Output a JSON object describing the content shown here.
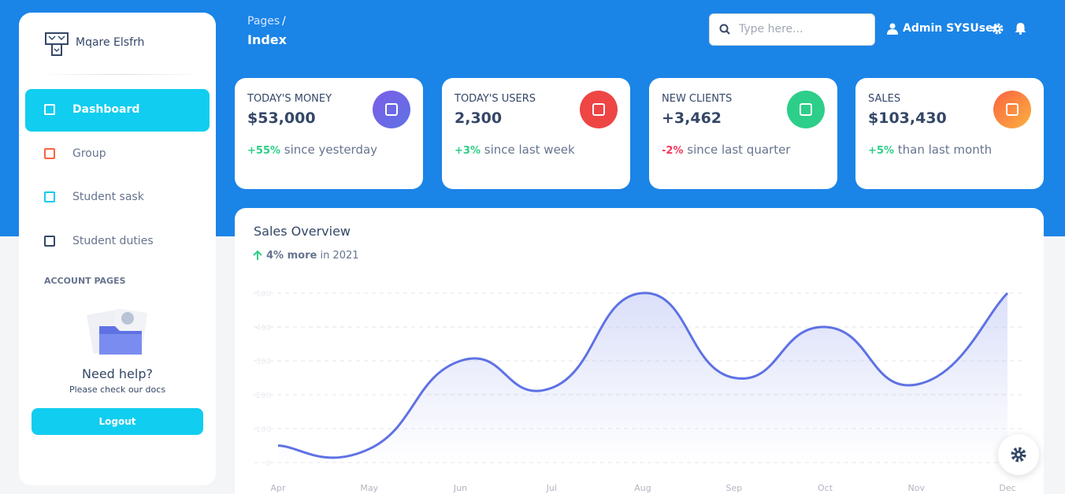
{
  "sidebar": {
    "brand": "Mqare Elsfrh",
    "nav": [
      "Dashboard",
      "Group",
      "Student sask",
      "Student duties"
    ],
    "section": "ACCOUNT PAGES",
    "help_title": "Need help?",
    "help_text": "Please check our docs",
    "button": "Logout"
  },
  "header": {
    "breadcrumb": "Pages",
    "separator": "/",
    "page": "Index",
    "search_placeholder": "Type here...",
    "user": "Admin SYSUser"
  },
  "stats": [
    {
      "title": "TODAY'S MONEY",
      "value": "$53,000",
      "change": "+55%",
      "note": "since yesterday"
    },
    {
      "title": "TODAY'S USERS",
      "value": "2,300",
      "change": "+3%",
      "note": "since last week"
    },
    {
      "title": "NEW CLIENTS",
      "value": "+3,462",
      "change": "-2%",
      "note": "since last quarter"
    },
    {
      "title": "SALES",
      "value": "$103,430",
      "change": "+5%",
      "note": "than last month"
    }
  ],
  "chart_data": {
    "type": "line",
    "title": "Sales Overview",
    "highlight": "4% more",
    "subtitle": "in 2021",
    "categories": [
      "Apr",
      "May",
      "Jun",
      "Jul",
      "Aug",
      "Sep",
      "Oct",
      "Nov",
      "Dec"
    ],
    "series": [
      {
        "name": "Sales",
        "color": "#5e72e4",
        "values": [
          50,
          40,
          300,
          220,
          500,
          250,
          400,
          230,
          500
        ]
      }
    ],
    "ylim": [
      0,
      500
    ],
    "yticks": [
      0,
      100,
      200,
      300,
      400,
      500
    ],
    "grid": true
  }
}
